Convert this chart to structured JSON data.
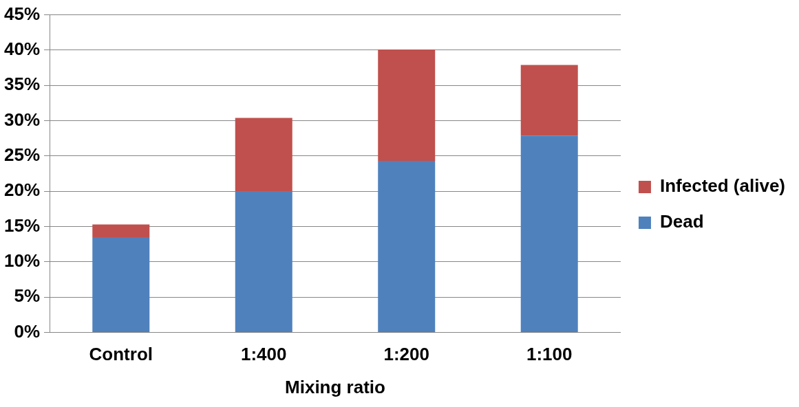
{
  "chart_data": {
    "type": "bar",
    "stacked": true,
    "xlabel": "Mixing ratio",
    "categories": [
      "Control",
      "1:400",
      "1:200",
      "1:100"
    ],
    "series": [
      {
        "name": "Dead",
        "color": "#4f81bd",
        "values": [
          13.5,
          20.0,
          24.3,
          27.9
        ]
      },
      {
        "name": "Infected (alive)",
        "color": "#c0504d",
        "values": [
          1.8,
          10.4,
          15.8,
          10.0
        ]
      }
    ],
    "ylim": [
      0,
      45
    ],
    "yticks": [
      {
        "value": 0,
        "label": "0%"
      },
      {
        "value": 5,
        "label": "5%"
      },
      {
        "value": 10,
        "label": "10%"
      },
      {
        "value": 15,
        "label": "15%"
      },
      {
        "value": 20,
        "label": "20%"
      },
      {
        "value": 25,
        "label": "25%"
      },
      {
        "value": 30,
        "label": "30%"
      },
      {
        "value": 35,
        "label": "35%"
      },
      {
        "value": 40,
        "label": "40%"
      },
      {
        "value": 45,
        "label": "45%"
      }
    ],
    "grid": "y",
    "legend": "right"
  }
}
